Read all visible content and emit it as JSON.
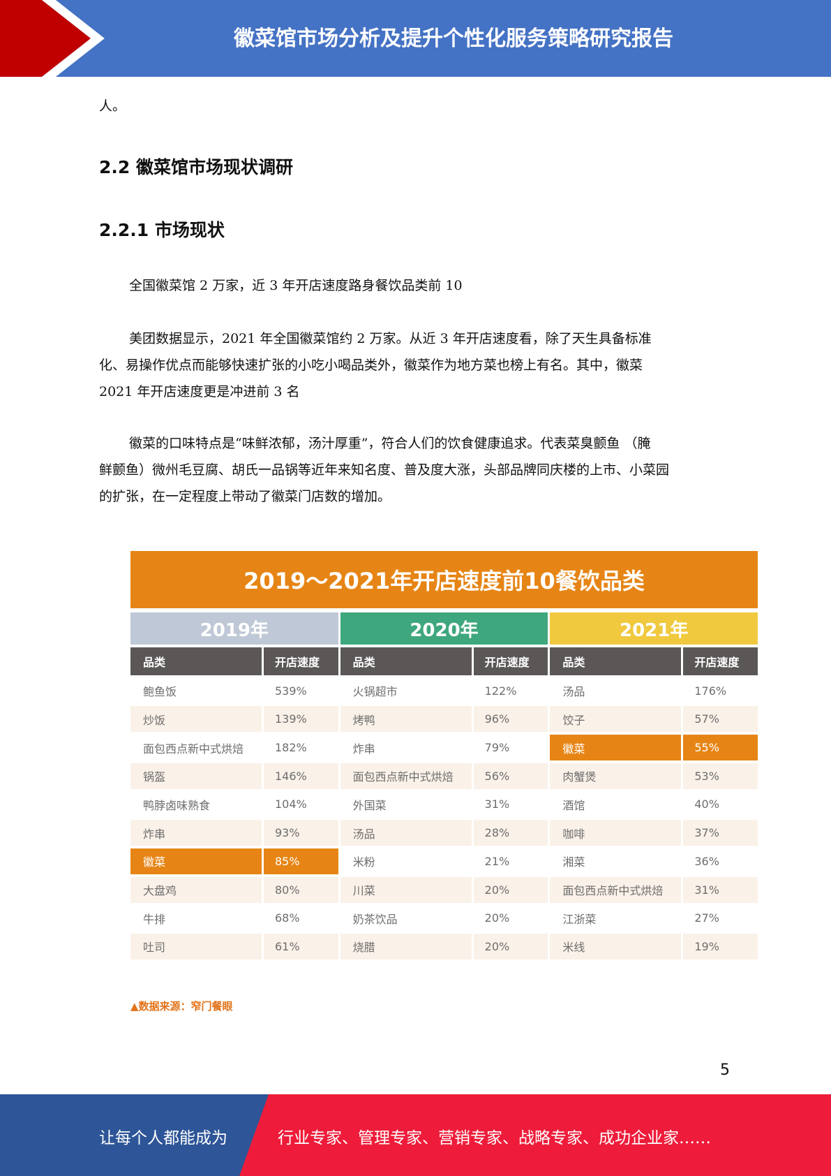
{
  "header": {
    "title": "徽菜馆市场分析及提升个性化服务策略研究报告"
  },
  "body": {
    "p0": "人。",
    "h2": "2.2 徽菜馆市场现状调研",
    "h3": "2.2.1 市场现状",
    "p1": "全国徽菜馆 2 万家，近 3 年开店速度路身餐饮品类前 10",
    "p2_l1": "美团数据显示，2021 年全国徽菜馆约 2 万家。从近 3 年开店速度看，除了天生具备标准",
    "p2_l2": "化、易操作优点而能够快速扩张的小吃小喝品类外，徽菜作为地方菜也榜上有名。其中，徽菜",
    "p2_l3": "2021 年开店速度更是冲进前 3 名",
    "p3_l1": "徽菜的口味特点是“味鲜浓郁，汤汁厚重”，符合人们的饮食健康追求。代表菜臭颤鱼 （腌",
    "p3_l2": "鲜颤鱼）微州毛豆腐、胡氏一品锅等近年来知名度、普及度大涨，头部品牌同庆楼的上市、小菜园",
    "p3_l3": "的扩张，在一定程度上带动了徽菜门店数的增加。"
  },
  "chart_data": {
    "type": "table",
    "title": "2019～2021年开店速度前10餐饮品类",
    "col_headers": [
      "品类",
      "开店速度"
    ],
    "years": [
      {
        "year": "2019年",
        "color": "#bfc8d6",
        "highlight": 6,
        "rows": [
          [
            "鲍鱼饭",
            "539%"
          ],
          [
            "炒饭",
            "139%"
          ],
          [
            "面包西点新中式烘焙",
            "182%"
          ],
          [
            "锅盔",
            "146%"
          ],
          [
            "鸭脖卤味熟食",
            "104%"
          ],
          [
            "炸串",
            "93%"
          ],
          [
            "徽菜",
            "85%"
          ],
          [
            "大盘鸡",
            "80%"
          ],
          [
            "牛排",
            "68%"
          ],
          [
            "吐司",
            "61%"
          ]
        ]
      },
      {
        "year": "2020年",
        "color": "#3fa77d",
        "highlight": -1,
        "rows": [
          [
            "火锅超市",
            "122%"
          ],
          [
            "烤鸭",
            "96%"
          ],
          [
            "炸串",
            "79%"
          ],
          [
            "面包西点新中式烘焙",
            "56%"
          ],
          [
            "外国菜",
            "31%"
          ],
          [
            "汤品",
            "28%"
          ],
          [
            "米粉",
            "21%"
          ],
          [
            "川菜",
            "20%"
          ],
          [
            "奶茶饮品",
            "20%"
          ],
          [
            "烧腊",
            "20%"
          ]
        ]
      },
      {
        "year": "2021年",
        "color": "#f0c93f",
        "highlight": 2,
        "rows": [
          [
            "汤品",
            "176%"
          ],
          [
            "饺子",
            "57%"
          ],
          [
            "徽菜",
            "55%"
          ],
          [
            "肉蟹煲",
            "53%"
          ],
          [
            "酒馆",
            "40%"
          ],
          [
            "咖啡",
            "37%"
          ],
          [
            "湘菜",
            "36%"
          ],
          [
            "面包西点新中式烘焙",
            "31%"
          ],
          [
            "江浙菜",
            "27%"
          ],
          [
            "米线",
            "19%"
          ]
        ]
      }
    ],
    "source": "▲数据来源：窄门餐眼"
  },
  "page_number": "5",
  "footer": {
    "left": "让每个人都能成为",
    "right": "行业专家、管理专家、营销专家、战略专家、成功企业家……"
  },
  "colors": {
    "header_blue": "#4472c4",
    "accent_red": "#c00000",
    "footer_red": "#ee1c3a",
    "footer_blue": "#2e5597",
    "highlight_orange": "#e68515"
  }
}
